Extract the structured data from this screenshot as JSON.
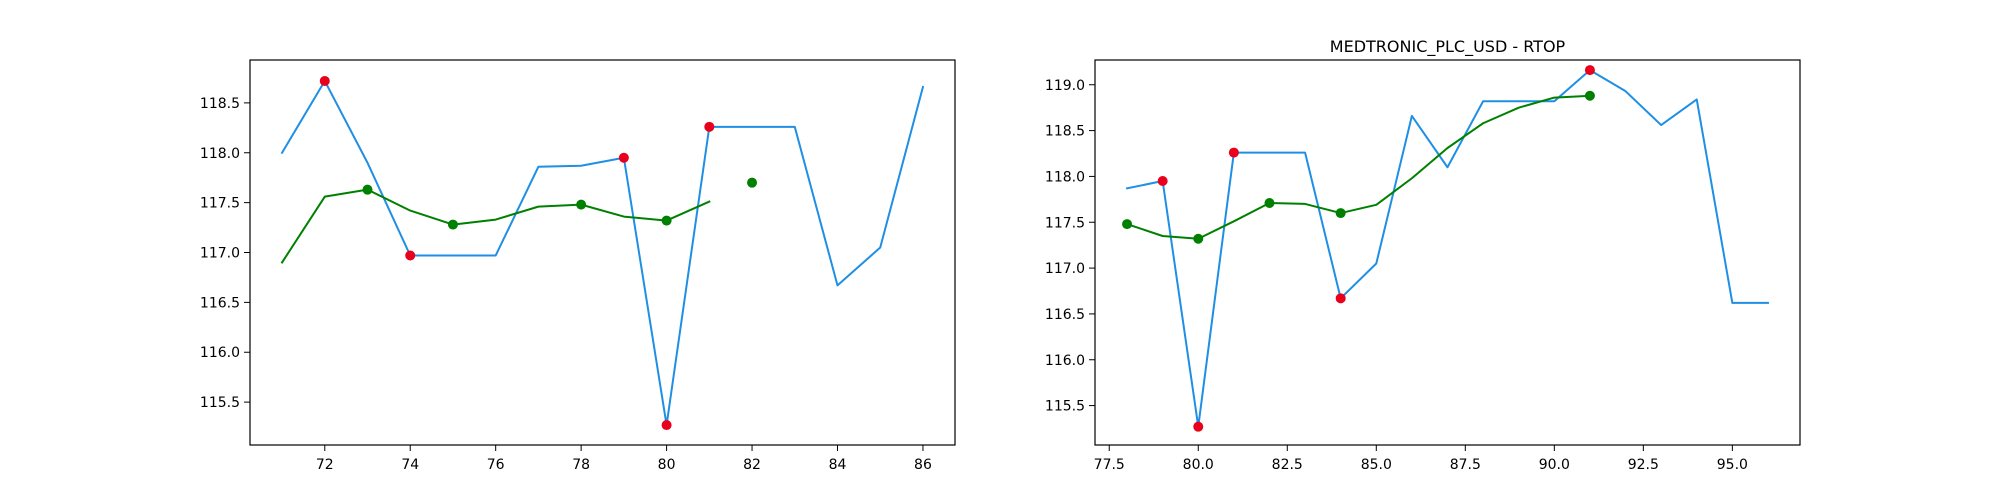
{
  "chart_data": [
    {
      "type": "line",
      "title": "",
      "xlabel": "",
      "ylabel": "",
      "xlim": [
        70.25,
        86.75
      ],
      "ylim": [
        115.07,
        118.93
      ],
      "xticks": [
        72,
        74,
        76,
        78,
        80,
        82,
        84,
        86
      ],
      "xtick_labels": [
        "72",
        "74",
        "76",
        "78",
        "80",
        "82",
        "84",
        "86"
      ],
      "yticks": [
        115.5,
        116.0,
        116.5,
        117.0,
        117.5,
        118.0,
        118.5
      ],
      "ytick_labels": [
        "115.5",
        "116.0",
        "116.5",
        "117.0",
        "117.5",
        "118.0",
        "118.5"
      ],
      "grid": false,
      "series": [
        {
          "kind": "line",
          "color": "#1f8fe5",
          "x": [
            71,
            72,
            73,
            74,
            75,
            76,
            77,
            78,
            79,
            80,
            81,
            82,
            83,
            84,
            85,
            86
          ],
          "y": [
            118.0,
            118.72,
            117.9,
            116.97,
            116.97,
            116.97,
            117.86,
            117.87,
            117.95,
            115.27,
            118.26,
            118.26,
            118.26,
            116.67,
            117.05,
            118.66
          ]
        },
        {
          "kind": "line",
          "color": "#008000",
          "x": [
            71,
            72,
            73,
            74,
            75,
            76,
            77,
            78,
            79,
            80,
            81
          ],
          "y": [
            116.9,
            117.56,
            117.63,
            117.42,
            117.28,
            117.33,
            117.46,
            117.48,
            117.36,
            117.32,
            117.51
          ]
        },
        {
          "kind": "scatter",
          "color": "#e8001c",
          "x": [
            72,
            74,
            79,
            80,
            81
          ],
          "y": [
            118.72,
            116.97,
            117.95,
            115.27,
            118.26
          ]
        },
        {
          "kind": "scatter",
          "color": "#008000",
          "x": [
            73,
            75,
            78,
            80,
            82
          ],
          "y": [
            117.63,
            117.28,
            117.48,
            117.32,
            117.7
          ]
        }
      ]
    },
    {
      "type": "line",
      "title": "MEDTRONIC_PLC_USD - RTOP",
      "xlabel": "",
      "ylabel": "",
      "xlim": [
        77.1,
        96.9
      ],
      "ylim": [
        115.07,
        119.27
      ],
      "xticks": [
        77.5,
        80.0,
        82.5,
        85.0,
        87.5,
        90.0,
        92.5,
        95.0
      ],
      "xtick_labels": [
        "77.5",
        "80.0",
        "82.5",
        "85.0",
        "87.5",
        "90.0",
        "92.5",
        "95.0"
      ],
      "yticks": [
        115.5,
        116.0,
        116.5,
        117.0,
        117.5,
        118.0,
        118.5,
        119.0
      ],
      "ytick_labels": [
        "115.5",
        "116.0",
        "116.5",
        "117.0",
        "117.5",
        "118.0",
        "118.5",
        "119.0"
      ],
      "grid": false,
      "series": [
        {
          "kind": "line",
          "color": "#1f8fe5",
          "x": [
            78,
            79,
            80,
            81,
            82,
            83,
            84,
            85,
            86,
            87,
            88,
            89,
            90,
            91,
            92,
            93,
            94,
            95,
            96
          ],
          "y": [
            117.87,
            117.95,
            115.27,
            118.26,
            118.26,
            118.26,
            116.67,
            117.05,
            118.66,
            118.1,
            118.82,
            118.82,
            118.82,
            119.16,
            118.93,
            118.56,
            118.84,
            116.62,
            116.62
          ]
        },
        {
          "kind": "line",
          "color": "#008000",
          "x": [
            78,
            79,
            80,
            81,
            82,
            83,
            84,
            85,
            86,
            87,
            88,
            89,
            90,
            91
          ],
          "y": [
            117.48,
            117.35,
            117.32,
            117.51,
            117.71,
            117.7,
            117.6,
            117.69,
            117.98,
            118.31,
            118.58,
            118.75,
            118.86,
            118.88
          ]
        },
        {
          "kind": "scatter",
          "color": "#e8001c",
          "x": [
            79,
            80,
            81,
            84,
            91
          ],
          "y": [
            117.95,
            115.27,
            118.26,
            116.67,
            119.16
          ]
        },
        {
          "kind": "scatter",
          "color": "#008000",
          "x": [
            78,
            80,
            82,
            84,
            91
          ],
          "y": [
            117.48,
            117.32,
            117.71,
            117.6,
            118.88
          ]
        }
      ]
    }
  ]
}
